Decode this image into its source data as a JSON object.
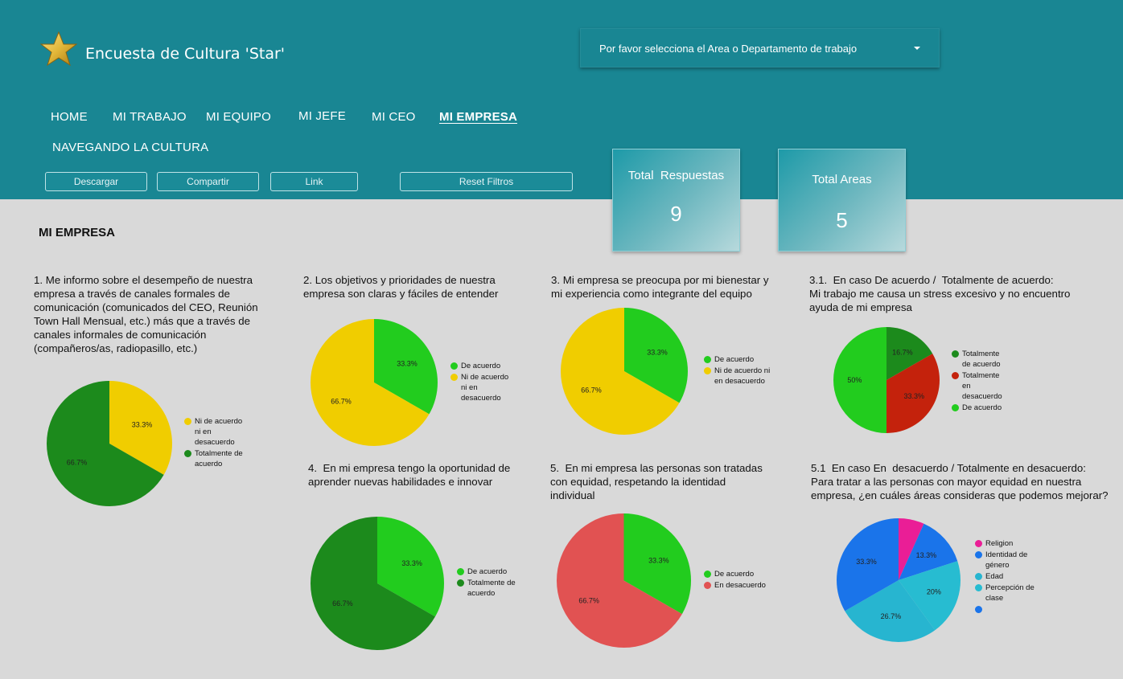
{
  "app": {
    "title": "Encuesta de Cultura 'Star'",
    "logo_icon": "star-icon",
    "colors": {
      "header": "#198693",
      "page_bg": "#d9d9d9",
      "star": "#e4b83a"
    }
  },
  "department_select": {
    "label": "Por favor selecciona el Area o Departamento de trabajo",
    "icon": "caret-down-icon"
  },
  "nav": {
    "items": [
      {
        "label": "HOME",
        "active": false
      },
      {
        "label": "MI TRABAJO",
        "active": false
      },
      {
        "label": "MI EQUIPO",
        "active": false
      },
      {
        "label": "MI JEFE",
        "active": false
      },
      {
        "label": "MI CEO",
        "active": false
      },
      {
        "label": "MI EMPRESA",
        "active": true
      },
      {
        "label": "NAVEGANDO LA CULTURA",
        "active": false
      }
    ]
  },
  "toolbar": {
    "download": "Descargar",
    "share": "Compartir",
    "link": "Link",
    "reset": "Reset Filtros"
  },
  "kpis": [
    {
      "label": "Total  Respuestas",
      "value": "9"
    },
    {
      "label": "Total Areas",
      "value": "5"
    }
  ],
  "section_title": "MI EMPRESA",
  "chart_data": [
    {
      "type": "pie",
      "title": "1. Me informo sobre el desempeño de nuestra\nempresa a través de canales formales de\ncomunicación (comunicados del CEO, Reunión\nTown Hall Mensual, etc.) más que a través de\ncanales informales de comunicación\n(compañeros/as, radiopasillo, etc.)",
      "slices": [
        {
          "label": "Ni de acuerdo ni en desacuerdo",
          "legend": "Ni de acuerdo\nni en\ndesacuerdo",
          "value": 33.3,
          "display": "33.3%",
          "color": "#f0cd00"
        },
        {
          "label": "Totalmente de acuerdo",
          "legend": "Totalmente de\nacuerdo",
          "value": 66.7,
          "display": "66.7%",
          "color": "#1c8a1c"
        }
      ]
    },
    {
      "type": "pie",
      "title": "2. Los objetivos y prioridades de nuestra\nempresa son claras y fáciles de entender",
      "slices": [
        {
          "label": "De acuerdo",
          "legend": "De acuerdo",
          "value": 33.3,
          "display": "33.3%",
          "color": "#22cc1e"
        },
        {
          "label": "Ni de acuerdo ni en desacuerdo",
          "legend": "Ni de acuerdo\nni en\ndesacuerdo",
          "value": 66.7,
          "display": "66.7%",
          "color": "#f0cd00"
        }
      ]
    },
    {
      "type": "pie",
      "title": "3. Mi empresa se preocupa por mi bienestar y\nmi experiencia como integrante del equipo",
      "slices": [
        {
          "label": "De acuerdo",
          "legend": "De acuerdo",
          "value": 33.3,
          "display": "33.3%",
          "color": "#22cc1e"
        },
        {
          "label": "Ni de acuerdo ni en desacuerdo",
          "legend": "Ni de acuerdo ni\nen desacuerdo",
          "value": 66.7,
          "display": "66.7%",
          "color": "#f0cd00"
        }
      ]
    },
    {
      "type": "pie",
      "title": "3.1.  En caso De acuerdo /  Totalmente de acuerdo:\nMi trabajo me causa un stress excesivo y no encuentro\nayuda de mi empresa",
      "slices": [
        {
          "label": "Totalmente de acuerdo",
          "legend": "Totalmente\nde acuerdo",
          "value": 16.7,
          "display": "16.7%",
          "color": "#1c8a1c"
        },
        {
          "label": "Totalmente en desacuerdo",
          "legend": "Totalmente\nen\ndesacuerdo",
          "value": 33.3,
          "display": "33.3%",
          "color": "#c4220c"
        },
        {
          "label": "De acuerdo",
          "legend": "De acuerdo",
          "value": 50,
          "display": "50%",
          "color": "#22cc1e"
        }
      ]
    },
    {
      "type": "pie",
      "title": "4.  En mi empresa tengo la oportunidad de\naprender nuevas habilidades e innovar",
      "slices": [
        {
          "label": "De acuerdo",
          "legend": "De acuerdo",
          "value": 33.3,
          "display": "33.3%",
          "color": "#22cc1e"
        },
        {
          "label": "Totalmente de acuerdo",
          "legend": "Totalmente de\nacuerdo",
          "value": 66.7,
          "display": "66.7%",
          "color": "#1c8a1c"
        }
      ]
    },
    {
      "type": "pie",
      "title": "5.  En mi empresa las personas son tratadas\ncon equidad, respetando la identidad\nindividual",
      "slices": [
        {
          "label": "De acuerdo",
          "legend": "De acuerdo",
          "value": 33.3,
          "display": "33.3%",
          "color": "#22cc1e"
        },
        {
          "label": "En desacuerdo",
          "legend": "En desacuerdo",
          "value": 66.7,
          "display": "66.7%",
          "color": "#e15252"
        }
      ]
    },
    {
      "type": "pie",
      "title": "5.1  En caso En  desacuerdo / Totalmente en desacuerdo:\nPara tratar a las personas con mayor equidad en nuestra\nempresa, ¿en cuáles áreas consideras que podemos mejorar?",
      "slices": [
        {
          "label": "Religion",
          "legend": "Religion",
          "value": 6.7,
          "display": "",
          "color": "#ea1e96"
        },
        {
          "label": "Identidad de género",
          "legend": "Identidad de\ngénero",
          "value": 13.3,
          "display": "13.3%",
          "color": "#1a74ea"
        },
        {
          "label": "Percepción de clase",
          "legend": "Percepción de\nclase",
          "value": 20,
          "display": "20%",
          "color": "#27bcd1"
        },
        {
          "label": "Edad",
          "legend": "Edad",
          "value": 26.7,
          "display": "26.7%",
          "color": "#27b5d0"
        },
        {
          "label": "",
          "legend": "",
          "value": 33.3,
          "display": "33.3%",
          "color": "#1a74ea"
        }
      ],
      "legend_order": [
        0,
        1,
        3,
        2,
        4
      ]
    }
  ]
}
